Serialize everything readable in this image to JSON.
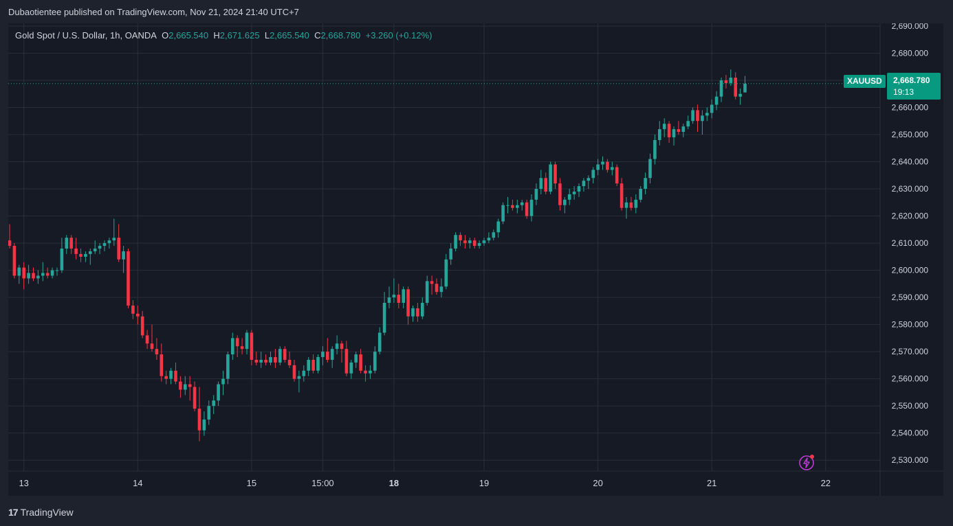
{
  "header": {
    "publisher_line": "Dubaotientee published on TradingView.com, Nov 21, 2024 21:40 UTC+7"
  },
  "legend": {
    "instrument": "Gold Spot / U.S. Dollar, 1h, OANDA",
    "open_label": "O",
    "open_value": "2,665.540",
    "high_label": "H",
    "high_value": "2,671.625",
    "low_label": "L",
    "low_value": "2,665.540",
    "close_label": "C",
    "close_value": "2,668.780",
    "change": "+3.260 (+0.12%)"
  },
  "price_tag": {
    "symbol": "XAUUSD",
    "price": "2,668.780",
    "countdown": "19:13"
  },
  "footer": {
    "brand": "TradingView"
  },
  "colors": {
    "background": "#161a25",
    "up": "#26a69a",
    "down": "#f23645",
    "grid": "#2a2e39",
    "axis_text": "#d1d4dc",
    "bolt_icon": "#c03bd6"
  },
  "chart_data": {
    "type": "candlestick",
    "title": "Gold Spot / U.S. Dollar, 1h, OANDA",
    "symbol": "XAUUSD",
    "x_tick_labels": [
      {
        "label": "13",
        "bold": false,
        "index": 3
      },
      {
        "label": "14",
        "bold": false,
        "index": 27
      },
      {
        "label": "15",
        "bold": false,
        "index": 51
      },
      {
        "label": "15:00",
        "bold": false,
        "index": 66
      },
      {
        "label": "18",
        "bold": true,
        "index": 81
      },
      {
        "label": "19",
        "bold": false,
        "index": 100
      },
      {
        "label": "20",
        "bold": false,
        "index": 124
      },
      {
        "label": "21",
        "bold": false,
        "index": 148
      },
      {
        "label": "22",
        "bold": false,
        "index": 172
      }
    ],
    "y_ticks": [
      2530,
      2540,
      2550,
      2560,
      2570,
      2580,
      2590,
      2600,
      2610,
      2620,
      2630,
      2640,
      2650,
      2660,
      2670,
      2680,
      2690
    ],
    "ylim": [
      2526,
      2691
    ],
    "last_price": 2668.78,
    "grid": true,
    "candles": [
      [
        2611,
        2617,
        2608,
        2609
      ],
      [
        2609,
        2610,
        2597,
        2598
      ],
      [
        2598,
        2602,
        2595,
        2601
      ],
      [
        2601,
        2603,
        2593,
        2597
      ],
      [
        2597,
        2602,
        2595,
        2599
      ],
      [
        2599,
        2601,
        2596,
        2597
      ],
      [
        2597,
        2600,
        2595,
        2598
      ],
      [
        2598,
        2603,
        2596,
        2599
      ],
      [
        2599,
        2601,
        2597,
        2598
      ],
      [
        2598,
        2601,
        2597,
        2600
      ],
      [
        2600,
        2601,
        2598,
        2600
      ],
      [
        2600,
        2612,
        2599,
        2608
      ],
      [
        2608,
        2613,
        2606,
        2612
      ],
      [
        2612,
        2613,
        2606,
        2608
      ],
      [
        2608,
        2612,
        2604,
        2606
      ],
      [
        2606,
        2608,
        2603,
        2605
      ],
      [
        2605,
        2607,
        2603,
        2606
      ],
      [
        2606,
        2608,
        2602,
        2607
      ],
      [
        2607,
        2611,
        2606,
        2608
      ],
      [
        2608,
        2610,
        2606,
        2609
      ],
      [
        2609,
        2611,
        2607,
        2610
      ],
      [
        2610,
        2612,
        2608,
        2611
      ],
      [
        2611,
        2619,
        2609,
        2612
      ],
      [
        2612,
        2617,
        2603,
        2604
      ],
      [
        2604,
        2609,
        2599,
        2607
      ],
      [
        2607,
        2608,
        2586,
        2587
      ],
      [
        2587,
        2589,
        2582,
        2584
      ],
      [
        2584,
        2587,
        2580,
        2583
      ],
      [
        2583,
        2585,
        2575,
        2576
      ],
      [
        2576,
        2578,
        2571,
        2573
      ],
      [
        2573,
        2580,
        2570,
        2571
      ],
      [
        2571,
        2575,
        2567,
        2569
      ],
      [
        2569,
        2573,
        2559,
        2561
      ],
      [
        2561,
        2563,
        2558,
        2560
      ],
      [
        2560,
        2564,
        2558,
        2563
      ],
      [
        2563,
        2566,
        2558,
        2559
      ],
      [
        2559,
        2561,
        2553,
        2556
      ],
      [
        2556,
        2561,
        2554,
        2558
      ],
      [
        2558,
        2561,
        2552,
        2557
      ],
      [
        2557,
        2559,
        2548,
        2549
      ],
      [
        2549,
        2557,
        2537,
        2541
      ],
      [
        2541,
        2548,
        2539,
        2545
      ],
      [
        2545,
        2552,
        2543,
        2550
      ],
      [
        2550,
        2554,
        2547,
        2552
      ],
      [
        2552,
        2559,
        2550,
        2558
      ],
      [
        2558,
        2563,
        2554,
        2560
      ],
      [
        2560,
        2570,
        2558,
        2569
      ],
      [
        2569,
        2577,
        2567,
        2575
      ],
      [
        2575,
        2576,
        2568,
        2572
      ],
      [
        2572,
        2575,
        2569,
        2571
      ],
      [
        2571,
        2578,
        2569,
        2577
      ],
      [
        2577,
        2578,
        2565,
        2567
      ],
      [
        2567,
        2570,
        2565,
        2566
      ],
      [
        2566,
        2570,
        2564,
        2567
      ],
      [
        2567,
        2569,
        2565,
        2566
      ],
      [
        2566,
        2570,
        2565,
        2568
      ],
      [
        2568,
        2571,
        2564,
        2566
      ],
      [
        2566,
        2572,
        2565,
        2571
      ],
      [
        2571,
        2572,
        2566,
        2567
      ],
      [
        2567,
        2570,
        2564,
        2565
      ],
      [
        2565,
        2567,
        2559,
        2560
      ],
      [
        2560,
        2563,
        2555,
        2561
      ],
      [
        2561,
        2565,
        2559,
        2563
      ],
      [
        2563,
        2568,
        2561,
        2567
      ],
      [
        2567,
        2569,
        2562,
        2563
      ],
      [
        2563,
        2569,
        2562,
        2568
      ],
      [
        2568,
        2572,
        2565,
        2570
      ],
      [
        2570,
        2575,
        2566,
        2567
      ],
      [
        2567,
        2572,
        2564,
        2571
      ],
      [
        2571,
        2576,
        2569,
        2573
      ],
      [
        2573,
        2574,
        2566,
        2571
      ],
      [
        2571,
        2574,
        2561,
        2562
      ],
      [
        2562,
        2567,
        2560,
        2566
      ],
      [
        2566,
        2570,
        2564,
        2569
      ],
      [
        2569,
        2571,
        2562,
        2563
      ],
      [
        2563,
        2565,
        2559,
        2562
      ],
      [
        2562,
        2565,
        2560,
        2563
      ],
      [
        2563,
        2572,
        2562,
        2570
      ],
      [
        2570,
        2579,
        2569,
        2577
      ],
      [
        2577,
        2592,
        2576,
        2588
      ],
      [
        2588,
        2594,
        2586,
        2590
      ],
      [
        2590,
        2597,
        2588,
        2591
      ],
      [
        2591,
        2595,
        2586,
        2588
      ],
      [
        2588,
        2594,
        2586,
        2593
      ],
      [
        2593,
        2594,
        2580,
        2583
      ],
      [
        2583,
        2587,
        2581,
        2586
      ],
      [
        2586,
        2588,
        2581,
        2583
      ],
      [
        2583,
        2590,
        2582,
        2588
      ],
      [
        2588,
        2598,
        2587,
        2596
      ],
      [
        2596,
        2598,
        2591,
        2595
      ],
      [
        2595,
        2597,
        2591,
        2592
      ],
      [
        2592,
        2597,
        2590,
        2594
      ],
      [
        2594,
        2606,
        2593,
        2604
      ],
      [
        2604,
        2610,
        2602,
        2608
      ],
      [
        2608,
        2614,
        2607,
        2613
      ],
      [
        2613,
        2614,
        2609,
        2611
      ],
      [
        2611,
        2613,
        2608,
        2610
      ],
      [
        2610,
        2612,
        2608,
        2611
      ],
      [
        2611,
        2612,
        2608,
        2609
      ],
      [
        2609,
        2611,
        2608,
        2610
      ],
      [
        2610,
        2612,
        2609,
        2611
      ],
      [
        2611,
        2614,
        2610,
        2612
      ],
      [
        2612,
        2615,
        2611,
        2614
      ],
      [
        2614,
        2619,
        2612,
        2618
      ],
      [
        2618,
        2625,
        2617,
        2624
      ],
      [
        2624,
        2627,
        2621,
        2624
      ],
      [
        2624,
        2626,
        2622,
        2623
      ],
      [
        2623,
        2626,
        2621,
        2624
      ],
      [
        2624,
        2626,
        2622,
        2625
      ],
      [
        2625,
        2626,
        2619,
        2620
      ],
      [
        2620,
        2628,
        2618,
        2626
      ],
      [
        2626,
        2632,
        2624,
        2630
      ],
      [
        2630,
        2637,
        2628,
        2634
      ],
      [
        2634,
        2636,
        2628,
        2629
      ],
      [
        2629,
        2640,
        2628,
        2639
      ],
      [
        2639,
        2640,
        2630,
        2632
      ],
      [
        2632,
        2634,
        2622,
        2624
      ],
      [
        2624,
        2627,
        2621,
        2626
      ],
      [
        2626,
        2630,
        2624,
        2628
      ],
      [
        2628,
        2631,
        2626,
        2629
      ],
      [
        2629,
        2632,
        2627,
        2631
      ],
      [
        2631,
        2634,
        2629,
        2633
      ],
      [
        2633,
        2635,
        2630,
        2634
      ],
      [
        2634,
        2638,
        2632,
        2637
      ],
      [
        2637,
        2641,
        2635,
        2639
      ],
      [
        2639,
        2642,
        2637,
        2640
      ],
      [
        2640,
        2641,
        2636,
        2637
      ],
      [
        2637,
        2640,
        2635,
        2638
      ],
      [
        2638,
        2639,
        2631,
        2632
      ],
      [
        2632,
        2634,
        2622,
        2623
      ],
      [
        2623,
        2627,
        2619,
        2625
      ],
      [
        2625,
        2627,
        2622,
        2623
      ],
      [
        2623,
        2628,
        2621,
        2626
      ],
      [
        2626,
        2631,
        2625,
        2630
      ],
      [
        2630,
        2636,
        2628,
        2634
      ],
      [
        2634,
        2643,
        2632,
        2641
      ],
      [
        2641,
        2650,
        2639,
        2648
      ],
      [
        2648,
        2655,
        2646,
        2652
      ],
      [
        2652,
        2656,
        2649,
        2654
      ],
      [
        2654,
        2655,
        2647,
        2649
      ],
      [
        2649,
        2653,
        2646,
        2652
      ],
      [
        2652,
        2655,
        2650,
        2651
      ],
      [
        2651,
        2654,
        2649,
        2653
      ],
      [
        2653,
        2657,
        2652,
        2655
      ],
      [
        2655,
        2660,
        2654,
        2659
      ],
      [
        2659,
        2661,
        2651,
        2655
      ],
      [
        2655,
        2659,
        2650,
        2657
      ],
      [
        2657,
        2660,
        2655,
        2658
      ],
      [
        2658,
        2663,
        2656,
        2661
      ],
      [
        2661,
        2666,
        2659,
        2664
      ],
      [
        2664,
        2671,
        2662,
        2670
      ],
      [
        2670,
        2672,
        2667,
        2669
      ],
      [
        2669,
        2674,
        2668,
        2671
      ],
      [
        2671,
        2673,
        2663,
        2664
      ],
      [
        2664,
        2667,
        2661,
        2665
      ],
      [
        2665.54,
        2671.625,
        2665.54,
        2668.78
      ]
    ]
  }
}
